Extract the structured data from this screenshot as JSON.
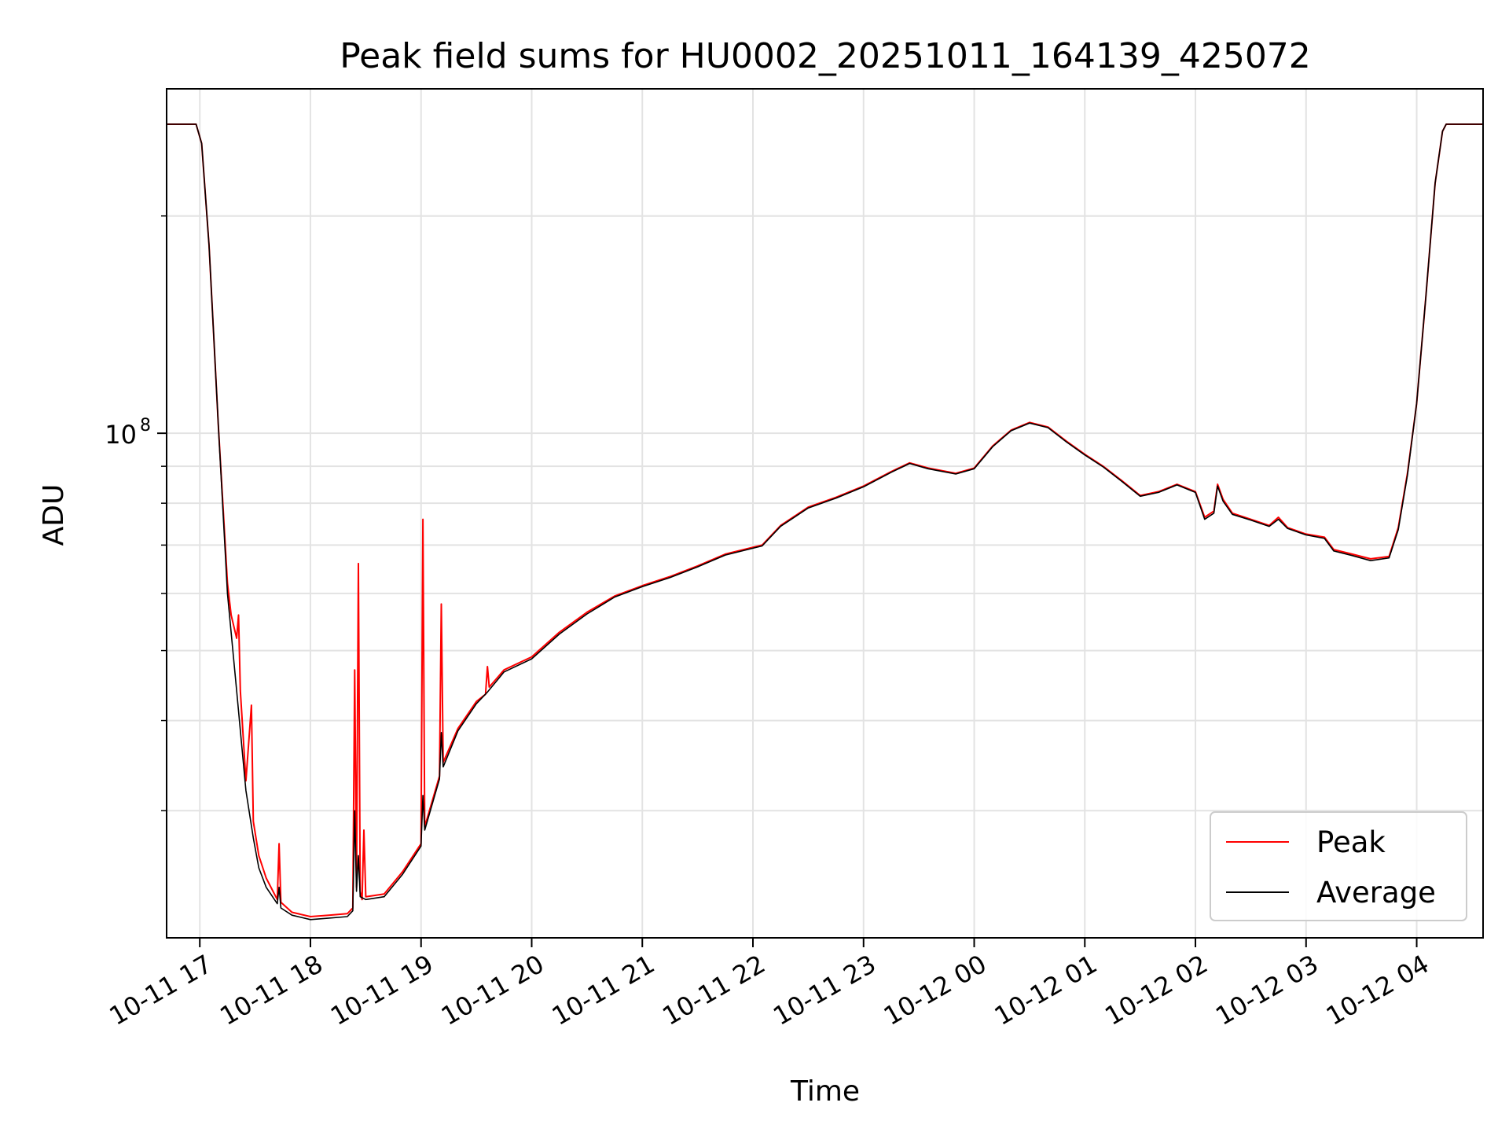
{
  "chart_data": {
    "type": "line",
    "title": "Peak field sums for HU0002_20251011_164139_425072",
    "xlabel": "Time",
    "ylabel": "ADU",
    "y_scale": "log",
    "grid": true,
    "legend_position": "lower-right",
    "xlim": [
      "2025-10-11 16:42",
      "2025-10-12 04:36"
    ],
    "ylim": [
      20000000,
      300000000
    ],
    "x_ticks": [
      {
        "value": "2025-10-11 17:00",
        "label": "10-11 17"
      },
      {
        "value": "2025-10-11 18:00",
        "label": "10-11 18"
      },
      {
        "value": "2025-10-11 19:00",
        "label": "10-11 19"
      },
      {
        "value": "2025-10-11 20:00",
        "label": "10-11 20"
      },
      {
        "value": "2025-10-11 21:00",
        "label": "10-11 21"
      },
      {
        "value": "2025-10-11 22:00",
        "label": "10-11 22"
      },
      {
        "value": "2025-10-11 23:00",
        "label": "10-11 23"
      },
      {
        "value": "2025-10-12 00:00",
        "label": "10-12 00"
      },
      {
        "value": "2025-10-12 01:00",
        "label": "10-12 01"
      },
      {
        "value": "2025-10-12 02:00",
        "label": "10-12 02"
      },
      {
        "value": "2025-10-12 03:00",
        "label": "10-12 03"
      },
      {
        "value": "2025-10-12 04:00",
        "label": "10-12 04"
      }
    ],
    "y_major_tick": {
      "value": 100000000,
      "label_base": "10",
      "label_exp": "8"
    },
    "y_minor_ticks": [
      30000000,
      40000000,
      50000000,
      60000000,
      70000000,
      80000000,
      90000000,
      200000000,
      300000000
    ],
    "series": [
      {
        "name": "Peak",
        "color": "#ff0000",
        "points": [
          [
            "2025-10-11 16:42",
            268000000
          ],
          [
            "2025-10-11 16:58",
            268000000
          ],
          [
            "2025-10-11 17:01",
            252000000
          ],
          [
            "2025-10-11 17:05",
            182000000
          ],
          [
            "2025-10-11 17:10",
            103000000
          ],
          [
            "2025-10-11 17:15",
            62000000
          ],
          [
            "2025-10-11 17:17",
            56000000
          ],
          [
            "2025-10-11 17:20",
            52000000
          ],
          [
            "2025-10-11 17:21",
            56000000
          ],
          [
            "2025-10-11 17:22",
            44000000
          ],
          [
            "2025-10-11 17:25",
            33000000
          ],
          [
            "2025-10-11 17:28",
            42000000
          ],
          [
            "2025-10-11 17:29",
            29000000
          ],
          [
            "2025-10-11 17:32",
            26000000
          ],
          [
            "2025-10-11 17:36",
            24200000
          ],
          [
            "2025-10-11 17:42",
            22600000
          ],
          [
            "2025-10-11 17:43",
            27000000
          ],
          [
            "2025-10-11 17:44",
            22400000
          ],
          [
            "2025-10-11 17:50",
            21700000
          ],
          [
            "2025-10-11 18:00",
            21400000
          ],
          [
            "2025-10-11 18:10",
            21500000
          ],
          [
            "2025-10-11 18:20",
            21600000
          ],
          [
            "2025-10-11 18:23",
            22000000
          ],
          [
            "2025-10-11 18:24",
            47000000
          ],
          [
            "2025-10-11 18:25",
            23500000
          ],
          [
            "2025-10-11 18:26",
            66000000
          ],
          [
            "2025-10-11 18:27",
            23200000
          ],
          [
            "2025-10-11 18:28",
            22600000
          ],
          [
            "2025-10-11 18:29",
            28200000
          ],
          [
            "2025-10-11 18:30",
            22800000
          ],
          [
            "2025-10-11 18:40",
            23000000
          ],
          [
            "2025-10-11 18:50",
            24700000
          ],
          [
            "2025-10-11 19:00",
            27000000
          ],
          [
            "2025-10-11 19:01",
            76000000
          ],
          [
            "2025-10-11 19:02",
            28500000
          ],
          [
            "2025-10-11 19:10",
            33500000
          ],
          [
            "2025-10-11 19:11",
            58000000
          ],
          [
            "2025-10-11 19:12",
            35000000
          ],
          [
            "2025-10-11 19:20",
            39000000
          ],
          [
            "2025-10-11 19:30",
            42500000
          ],
          [
            "2025-10-11 19:35",
            43500000
          ],
          [
            "2025-10-11 19:36",
            47500000
          ],
          [
            "2025-10-11 19:37",
            44500000
          ],
          [
            "2025-10-11 19:45",
            47000000
          ],
          [
            "2025-10-11 20:00",
            49000000
          ],
          [
            "2025-10-11 20:15",
            53000000
          ],
          [
            "2025-10-11 20:30",
            56500000
          ],
          [
            "2025-10-11 20:45",
            59500000
          ],
          [
            "2025-10-11 21:00",
            61500000
          ],
          [
            "2025-10-11 21:15",
            63300000
          ],
          [
            "2025-10-11 21:30",
            65500000
          ],
          [
            "2025-10-11 21:45",
            68000000
          ],
          [
            "2025-10-11 22:00",
            69500000
          ],
          [
            "2025-10-11 22:05",
            70000000
          ],
          [
            "2025-10-11 22:15",
            74500000
          ],
          [
            "2025-10-11 22:30",
            79000000
          ],
          [
            "2025-10-11 22:45",
            81500000
          ],
          [
            "2025-10-11 23:00",
            84500000
          ],
          [
            "2025-10-11 23:15",
            88500000
          ],
          [
            "2025-10-11 23:25",
            91000000
          ],
          [
            "2025-10-11 23:35",
            89500000
          ],
          [
            "2025-10-11 23:50",
            88000000
          ],
          [
            "2025-10-12 00:00",
            89500000
          ],
          [
            "2025-10-12 00:10",
            96000000
          ],
          [
            "2025-10-12 00:20",
            101000000
          ],
          [
            "2025-10-12 00:30",
            103500000
          ],
          [
            "2025-10-12 00:40",
            102000000
          ],
          [
            "2025-10-12 00:50",
            97500000
          ],
          [
            "2025-10-12 01:00",
            93500000
          ],
          [
            "2025-10-12 01:10",
            90000000
          ],
          [
            "2025-10-12 01:20",
            86000000
          ],
          [
            "2025-10-12 01:30",
            82000000
          ],
          [
            "2025-10-12 01:40",
            83000000
          ],
          [
            "2025-10-12 01:50",
            85000000
          ],
          [
            "2025-10-12 02:00",
            83000000
          ],
          [
            "2025-10-12 02:05",
            76500000
          ],
          [
            "2025-10-12 02:10",
            78000000
          ],
          [
            "2025-10-12 02:12",
            85000000
          ],
          [
            "2025-10-12 02:15",
            81000000
          ],
          [
            "2025-10-12 02:20",
            77500000
          ],
          [
            "2025-10-12 02:30",
            76000000
          ],
          [
            "2025-10-12 02:40",
            74500000
          ],
          [
            "2025-10-12 02:45",
            76500000
          ],
          [
            "2025-10-12 02:50",
            74000000
          ],
          [
            "2025-10-12 03:00",
            72500000
          ],
          [
            "2025-10-12 03:10",
            71800000
          ],
          [
            "2025-10-12 03:15",
            69000000
          ],
          [
            "2025-10-12 03:25",
            68000000
          ],
          [
            "2025-10-12 03:35",
            67000000
          ],
          [
            "2025-10-12 03:45",
            67500000
          ],
          [
            "2025-10-12 03:50",
            74000000
          ],
          [
            "2025-10-12 03:55",
            88000000
          ],
          [
            "2025-10-12 04:00",
            110000000
          ],
          [
            "2025-10-12 04:05",
            155000000
          ],
          [
            "2025-10-12 04:10",
            222000000
          ],
          [
            "2025-10-12 04:14",
            262000000
          ],
          [
            "2025-10-12 04:16",
            268000000
          ],
          [
            "2025-10-12 04:36",
            268000000
          ]
        ]
      },
      {
        "name": "Average",
        "color": "#000000",
        "points": [
          [
            "2025-10-11 16:42",
            268000000
          ],
          [
            "2025-10-11 16:58",
            268000000
          ],
          [
            "2025-10-11 17:01",
            252000000
          ],
          [
            "2025-10-11 17:05",
            182000000
          ],
          [
            "2025-10-11 17:10",
            103000000
          ],
          [
            "2025-10-11 17:15",
            60000000
          ],
          [
            "2025-10-11 17:20",
            44000000
          ],
          [
            "2025-10-11 17:25",
            32000000
          ],
          [
            "2025-10-11 17:29",
            27500000
          ],
          [
            "2025-10-11 17:32",
            25000000
          ],
          [
            "2025-10-11 17:36",
            23500000
          ],
          [
            "2025-10-11 17:42",
            22300000
          ],
          [
            "2025-10-11 17:43",
            23500000
          ],
          [
            "2025-10-11 17:44",
            22000000
          ],
          [
            "2025-10-11 17:50",
            21500000
          ],
          [
            "2025-10-11 18:00",
            21200000
          ],
          [
            "2025-10-11 18:10",
            21300000
          ],
          [
            "2025-10-11 18:20",
            21400000
          ],
          [
            "2025-10-11 18:23",
            21800000
          ],
          [
            "2025-10-11 18:24",
            30000000
          ],
          [
            "2025-10-11 18:25",
            23200000
          ],
          [
            "2025-10-11 18:26",
            26000000
          ],
          [
            "2025-10-11 18:27",
            22800000
          ],
          [
            "2025-10-11 18:30",
            22600000
          ],
          [
            "2025-10-11 18:40",
            22800000
          ],
          [
            "2025-10-11 18:50",
            24500000
          ],
          [
            "2025-10-11 19:00",
            26800000
          ],
          [
            "2025-10-11 19:01",
            31500000
          ],
          [
            "2025-10-11 19:02",
            28200000
          ],
          [
            "2025-10-11 19:10",
            33200000
          ],
          [
            "2025-10-11 19:11",
            38500000
          ],
          [
            "2025-10-11 19:12",
            34500000
          ],
          [
            "2025-10-11 19:20",
            38700000
          ],
          [
            "2025-10-11 19:30",
            42200000
          ],
          [
            "2025-10-11 19:36",
            43800000
          ],
          [
            "2025-10-11 19:45",
            46700000
          ],
          [
            "2025-10-11 20:00",
            48700000
          ],
          [
            "2025-10-11 20:15",
            52700000
          ],
          [
            "2025-10-11 20:30",
            56200000
          ],
          [
            "2025-10-11 20:45",
            59300000
          ],
          [
            "2025-10-11 21:00",
            61300000
          ],
          [
            "2025-10-11 21:15",
            63100000
          ],
          [
            "2025-10-11 21:30",
            65300000
          ],
          [
            "2025-10-11 21:45",
            67800000
          ],
          [
            "2025-10-11 22:00",
            69300000
          ],
          [
            "2025-10-11 22:05",
            69800000
          ],
          [
            "2025-10-11 22:15",
            74300000
          ],
          [
            "2025-10-11 22:30",
            78800000
          ],
          [
            "2025-10-11 22:45",
            81300000
          ],
          [
            "2025-10-11 23:00",
            84300000
          ],
          [
            "2025-10-11 23:15",
            88300000
          ],
          [
            "2025-10-11 23:25",
            90800000
          ],
          [
            "2025-10-11 23:35",
            89300000
          ],
          [
            "2025-10-11 23:50",
            87800000
          ],
          [
            "2025-10-12 00:00",
            89300000
          ],
          [
            "2025-10-12 00:10",
            95800000
          ],
          [
            "2025-10-12 00:20",
            100800000
          ],
          [
            "2025-10-12 00:30",
            103300000
          ],
          [
            "2025-10-12 00:40",
            101800000
          ],
          [
            "2025-10-12 00:50",
            97300000
          ],
          [
            "2025-10-12 01:00",
            93300000
          ],
          [
            "2025-10-12 01:10",
            89800000
          ],
          [
            "2025-10-12 01:20",
            85800000
          ],
          [
            "2025-10-12 01:30",
            81800000
          ],
          [
            "2025-10-12 01:40",
            82800000
          ],
          [
            "2025-10-12 01:50",
            84800000
          ],
          [
            "2025-10-12 02:00",
            82800000
          ],
          [
            "2025-10-12 02:05",
            76000000
          ],
          [
            "2025-10-12 02:10",
            77500000
          ],
          [
            "2025-10-12 02:12",
            84500000
          ],
          [
            "2025-10-12 02:15",
            80500000
          ],
          [
            "2025-10-12 02:20",
            77200000
          ],
          [
            "2025-10-12 02:30",
            75800000
          ],
          [
            "2025-10-12 02:40",
            74300000
          ],
          [
            "2025-10-12 02:45",
            76000000
          ],
          [
            "2025-10-12 02:50",
            73800000
          ],
          [
            "2025-10-12 03:00",
            72300000
          ],
          [
            "2025-10-12 03:10",
            71500000
          ],
          [
            "2025-10-12 03:15",
            68700000
          ],
          [
            "2025-10-12 03:25",
            67700000
          ],
          [
            "2025-10-12 03:35",
            66600000
          ],
          [
            "2025-10-12 03:45",
            67200000
          ],
          [
            "2025-10-12 03:50",
            73500000
          ],
          [
            "2025-10-12 03:55",
            87500000
          ],
          [
            "2025-10-12 04:00",
            110000000
          ],
          [
            "2025-10-12 04:05",
            155000000
          ],
          [
            "2025-10-12 04:10",
            222000000
          ],
          [
            "2025-10-12 04:14",
            262000000
          ],
          [
            "2025-10-12 04:16",
            268000000
          ],
          [
            "2025-10-12 04:36",
            268000000
          ]
        ]
      }
    ]
  }
}
